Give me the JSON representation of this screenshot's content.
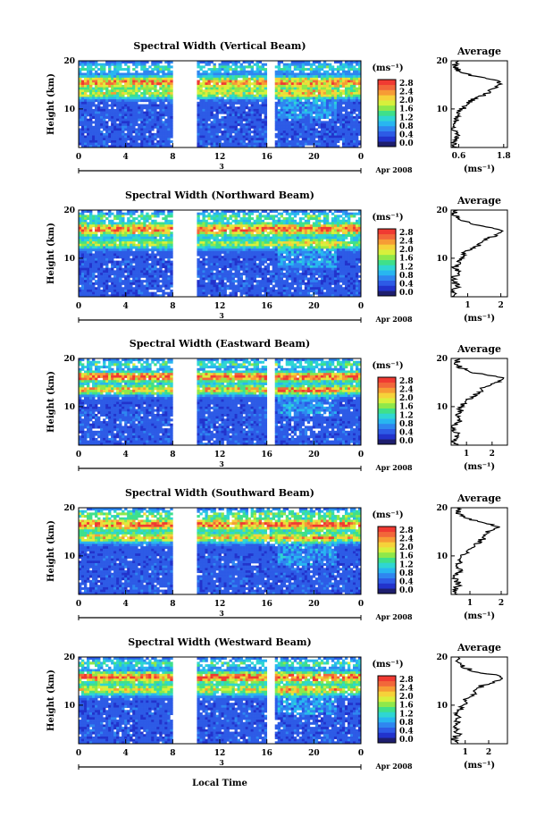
{
  "figure": {
    "xlabel": "Local Time",
    "date_label": "Apr 2008",
    "day_label": "3",
    "ylabel": "Height (km)",
    "units": "(ms⁻¹)",
    "average_title": "Average"
  },
  "colors": {
    "scale": [
      "#1e1e6e",
      "#2233cc",
      "#2d5be6",
      "#2f86f0",
      "#28b6f0",
      "#2fd6d2",
      "#3fe08a",
      "#8fe84a",
      "#d8f03c",
      "#f6d23a",
      "#f79c35",
      "#f2673a",
      "#f03a32"
    ],
    "no_data": "#ffffff",
    "line": "#000000"
  },
  "chart_data": [
    {
      "type": "heatmap",
      "title": "Spectral Width (Vertical Beam)",
      "x_ticks": [
        "0",
        "4",
        "8",
        "12",
        "16",
        "20",
        "0"
      ],
      "y_ticks": [
        "20",
        "10"
      ],
      "x_range_hours": [
        0,
        24
      ],
      "y_range_km": [
        2,
        20
      ],
      "gaps_hours": [
        [
          8,
          10
        ],
        [
          16,
          16.6
        ]
      ],
      "colorbar_ticks": [
        "2.8",
        "2.4",
        "2.0",
        "1.6",
        "1.2",
        "0.8",
        "0.4",
        "0.0"
      ],
      "colorbar_range": [
        0,
        2.8
      ],
      "layers": [
        {
          "h": 15.5,
          "w": 1.2,
          "v": 2.3
        },
        {
          "h": 13.2,
          "w": 1.0,
          "v": 1.6
        },
        {
          "h": 18.5,
          "w": 0.8,
          "v": 0.9
        }
      ],
      "avg": {
        "title": "Average",
        "x_ticks": [
          "0.6",
          "1.8"
        ],
        "x_range": [
          0.4,
          1.9
        ],
        "xlabel": "(ms⁻¹)",
        "heights": [
          2,
          3,
          4,
          5,
          6,
          7,
          8,
          9,
          10,
          11,
          12,
          13,
          14,
          15,
          16,
          17,
          18,
          19,
          20
        ],
        "values": [
          0.5,
          0.45,
          0.6,
          0.5,
          0.45,
          0.55,
          0.5,
          0.6,
          0.7,
          0.8,
          1.0,
          1.3,
          1.5,
          1.7,
          1.6,
          0.9,
          0.6,
          0.5,
          0.6
        ]
      }
    },
    {
      "type": "heatmap",
      "title": "Spectral Width (Northward Beam)",
      "x_ticks": [
        "0",
        "4",
        "8",
        "12",
        "16",
        "20",
        "0"
      ],
      "y_ticks": [
        "20",
        "10"
      ],
      "x_range_hours": [
        0,
        24
      ],
      "y_range_km": [
        2,
        20
      ],
      "gaps_hours": [
        [
          8,
          10
        ]
      ],
      "colorbar_ticks": [
        "2.8",
        "2.4",
        "2.0",
        "1.6",
        "1.2",
        "0.8",
        "0.4",
        "0.0"
      ],
      "colorbar_range": [
        0,
        2.8
      ],
      "layers": [
        {
          "h": 16.0,
          "w": 1.3,
          "v": 2.4
        },
        {
          "h": 13.0,
          "w": 1.0,
          "v": 1.5
        },
        {
          "h": 18.6,
          "w": 0.8,
          "v": 1.0
        }
      ],
      "avg": {
        "title": "Average",
        "x_ticks": [
          "1",
          "2"
        ],
        "x_range": [
          0.5,
          2.2
        ],
        "xlabel": "(ms⁻¹)",
        "heights": [
          2,
          3,
          4,
          5,
          6,
          7,
          8,
          9,
          10,
          11,
          12,
          13,
          14,
          15,
          16,
          17,
          18,
          19,
          20
        ],
        "values": [
          0.6,
          0.55,
          0.7,
          0.6,
          0.55,
          0.75,
          0.6,
          0.7,
          0.8,
          0.9,
          1.1,
          1.4,
          1.6,
          1.9,
          2.0,
          1.2,
          0.8,
          0.6,
          0.7
        ]
      }
    },
    {
      "type": "heatmap",
      "title": "Spectral Width (Eastward Beam)",
      "x_ticks": [
        "0",
        "4",
        "8",
        "12",
        "16",
        "20",
        "0"
      ],
      "y_ticks": [
        "20",
        "10"
      ],
      "x_range_hours": [
        0,
        24
      ],
      "y_range_km": [
        2,
        20
      ],
      "gaps_hours": [
        [
          8,
          10
        ],
        [
          16,
          16.6
        ]
      ],
      "colorbar_ticks": [
        "2.8",
        "2.4",
        "2.0",
        "1.6",
        "1.2",
        "0.8",
        "0.4",
        "0.0"
      ],
      "colorbar_range": [
        0,
        2.8
      ],
      "layers": [
        {
          "h": 16.2,
          "w": 1.0,
          "v": 2.6
        },
        {
          "h": 13.5,
          "w": 1.0,
          "v": 2.0
        },
        {
          "h": 18.8,
          "w": 0.8,
          "v": 1.0
        }
      ],
      "avg": {
        "title": "Average",
        "x_ticks": [
          "1",
          "2"
        ],
        "x_range": [
          0.4,
          2.6
        ],
        "xlabel": "(ms⁻¹)",
        "heights": [
          2,
          3,
          4,
          5,
          6,
          7,
          8,
          9,
          10,
          11,
          12,
          13,
          14,
          15,
          16,
          17,
          18,
          19,
          20
        ],
        "values": [
          0.6,
          0.5,
          0.65,
          0.55,
          0.5,
          0.7,
          0.6,
          0.75,
          0.8,
          0.9,
          1.2,
          1.5,
          1.6,
          2.2,
          2.5,
          1.3,
          0.8,
          0.6,
          0.7
        ]
      }
    },
    {
      "type": "heatmap",
      "title": "Spectral Width (Southward Beam)",
      "x_ticks": [
        "0",
        "4",
        "8",
        "12",
        "16",
        "20",
        "0"
      ],
      "y_ticks": [
        "20",
        "10"
      ],
      "x_range_hours": [
        0,
        24
      ],
      "y_range_km": [
        2,
        20
      ],
      "gaps_hours": [
        [
          8,
          10
        ]
      ],
      "colorbar_ticks": [
        "2.8",
        "2.4",
        "2.0",
        "1.6",
        "1.2",
        "0.8",
        "0.4",
        "0.0"
      ],
      "colorbar_range": [
        0,
        2.8
      ],
      "layers": [
        {
          "h": 16.5,
          "w": 1.2,
          "v": 2.5
        },
        {
          "h": 13.8,
          "w": 1.0,
          "v": 1.9
        },
        {
          "h": 18.7,
          "w": 0.8,
          "v": 1.1
        }
      ],
      "avg": {
        "title": "Average",
        "x_ticks": [
          "1",
          "2"
        ],
        "x_range": [
          0.4,
          2.2
        ],
        "xlabel": "(ms⁻¹)",
        "heights": [
          2,
          3,
          4,
          5,
          6,
          7,
          8,
          9,
          10,
          11,
          12,
          13,
          14,
          15,
          16,
          17,
          18,
          19,
          20
        ],
        "values": [
          0.6,
          0.5,
          0.65,
          0.55,
          0.5,
          0.7,
          0.6,
          0.7,
          0.8,
          0.9,
          1.1,
          1.3,
          1.5,
          1.6,
          2.0,
          1.3,
          0.8,
          0.6,
          0.7
        ]
      }
    },
    {
      "type": "heatmap",
      "title": "Spectral Width (Westward Beam)",
      "x_ticks": [
        "0",
        "4",
        "8",
        "12",
        "16",
        "20",
        "0"
      ],
      "y_ticks": [
        "20",
        "10"
      ],
      "x_range_hours": [
        0,
        24
      ],
      "y_range_km": [
        2,
        20
      ],
      "gaps_hours": [
        [
          8,
          10
        ],
        [
          16,
          16.6
        ]
      ],
      "colorbar_ticks": [
        "2.8",
        "2.4",
        "2.0",
        "1.6",
        "1.2",
        "0.8",
        "0.4",
        "0.0"
      ],
      "colorbar_range": [
        0,
        2.8
      ],
      "layers": [
        {
          "h": 15.8,
          "w": 1.1,
          "v": 2.5
        },
        {
          "h": 13.2,
          "w": 1.1,
          "v": 1.7
        },
        {
          "h": 18.6,
          "w": 0.8,
          "v": 1.0
        }
      ],
      "avg": {
        "title": "Average",
        "x_ticks": [
          "1",
          "2"
        ],
        "x_range": [
          0.4,
          2.8
        ],
        "xlabel": "(ms⁻¹)",
        "heights": [
          2,
          3,
          4,
          5,
          6,
          7,
          8,
          9,
          10,
          11,
          12,
          13,
          14,
          15,
          16,
          17,
          18,
          19,
          20
        ],
        "values": [
          0.6,
          0.5,
          0.7,
          0.6,
          0.55,
          0.75,
          0.6,
          0.8,
          0.9,
          1.0,
          1.3,
          1.5,
          1.7,
          2.3,
          2.6,
          1.4,
          0.9,
          0.6,
          0.7
        ]
      }
    }
  ]
}
